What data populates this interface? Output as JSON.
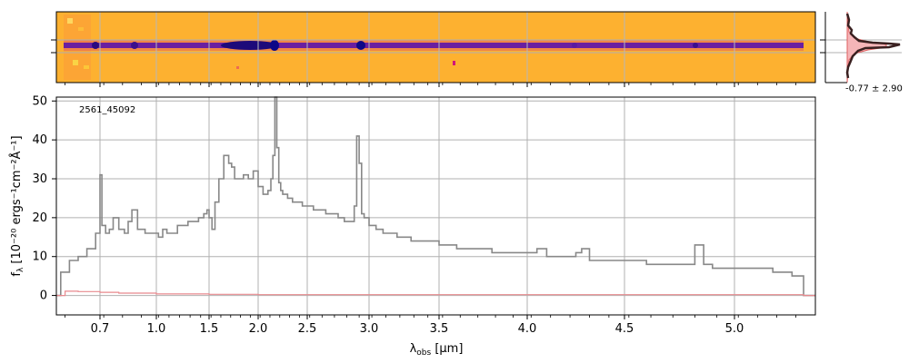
{
  "chart_data": [
    {
      "type": "heatmap",
      "title": "",
      "description_hidden": "",
      "colors": {
        "background": "#fdb130",
        "trace": "#3b0f8c",
        "trace_core": "#0d0887",
        "hot": "#f0f921"
      }
    },
    {
      "type": "line",
      "object_label": "2561_45092",
      "xlabel_prefix": "λ",
      "xlabel_sub": "obs",
      "xlabel_suffix": " [μm]",
      "ylabel_prefix": "f",
      "ylabel_sub": "λ",
      "ylabel_suffix": " [10⁻²⁰ ergs⁻¹cm⁻²Å⁻¹]",
      "ylim": [
        -5,
        51
      ],
      "yticks": [
        0,
        10,
        20,
        30,
        40,
        50
      ],
      "xticks": [
        {
          "label": "0.7",
          "value": 0.7
        },
        {
          "label": "1.0",
          "value": 1.0
        },
        {
          "label": "1.5",
          "value": 1.5
        },
        {
          "label": "2.0",
          "value": 2.0
        },
        {
          "label": "2.5",
          "value": 2.5
        },
        {
          "label": "3.0",
          "value": 3.0
        },
        {
          "label": "3.5",
          "value": 3.5
        },
        {
          "label": "4.0",
          "value": 4.0
        },
        {
          "label": "4.5",
          "value": 4.5
        },
        {
          "label": "5.0",
          "value": 5.0
        }
      ],
      "grid": true,
      "series": [
        {
          "color": "#888888",
          "x": [
            0.6,
            0.61,
            0.63,
            0.65,
            0.67,
            0.69,
            0.7,
            0.71,
            0.73,
            0.75,
            0.77,
            0.8,
            0.83,
            0.85,
            0.87,
            0.9,
            0.94,
            0.98,
            1.02,
            1.06,
            1.1,
            1.15,
            1.2,
            1.25,
            1.3,
            1.35,
            1.4,
            1.45,
            1.48,
            1.5,
            1.53,
            1.56,
            1.6,
            1.65,
            1.7,
            1.73,
            1.76,
            1.8,
            1.85,
            1.9,
            1.95,
            2.0,
            2.05,
            2.1,
            2.13,
            2.15,
            2.17,
            2.19,
            2.21,
            2.23,
            2.25,
            2.3,
            2.35,
            2.4,
            2.45,
            2.5,
            2.55,
            2.6,
            2.65,
            2.7,
            2.75,
            2.8,
            2.85,
            2.88,
            2.9,
            2.92,
            2.94,
            2.96,
            3.0,
            3.05,
            3.1,
            3.2,
            3.3,
            3.4,
            3.5,
            3.6,
            3.7,
            3.8,
            3.9,
            4.0,
            4.05,
            4.1,
            4.15,
            4.2,
            4.25,
            4.28,
            4.32,
            4.4,
            4.5,
            4.6,
            4.7,
            4.78,
            4.82,
            4.84,
            4.86,
            4.9,
            5.0,
            5.1,
            5.2,
            5.28,
            5.3,
            5.36
          ],
          "y": [
            0,
            6,
            9,
            10,
            12,
            16,
            31,
            18,
            16,
            17,
            20,
            17,
            16,
            19,
            22,
            17,
            16,
            16,
            15,
            17,
            16,
            16,
            18,
            18,
            19,
            19,
            20,
            21,
            22,
            20,
            17,
            24,
            30,
            36,
            34,
            33,
            30,
            30,
            31,
            30,
            32,
            28,
            26,
            27,
            30,
            36,
            51,
            38,
            29,
            27,
            26,
            25,
            24,
            24,
            23,
            23,
            22,
            22,
            21,
            21,
            20,
            19,
            19,
            23,
            41,
            34,
            21,
            20,
            18,
            17,
            16,
            15,
            14,
            14,
            13,
            12,
            12,
            11,
            11,
            11,
            12,
            10,
            10,
            10,
            11,
            12,
            9,
            9,
            9,
            8,
            8,
            8,
            13,
            13,
            8,
            7,
            7,
            7,
            6,
            6,
            5,
            0
          ]
        },
        {
          "color": "#e8898e",
          "x": [
            0.6,
            0.62,
            0.65,
            0.7,
            0.8,
            1.0,
            1.5,
            2.0,
            2.5,
            3.0,
            3.5,
            4.0,
            4.5,
            5.0,
            5.36
          ],
          "y": [
            0,
            1.1,
            1.0,
            0.8,
            0.6,
            0.4,
            0.3,
            0.2,
            0.2,
            0.2,
            0.2,
            0.2,
            0.2,
            0.2,
            0
          ]
        }
      ]
    },
    {
      "type": "line",
      "annotation": "-0.77 ± 2.90",
      "colors": {
        "profile": "#3a2020",
        "fill": "#f5b5b8",
        "fill_edge": "#e06060"
      }
    }
  ]
}
